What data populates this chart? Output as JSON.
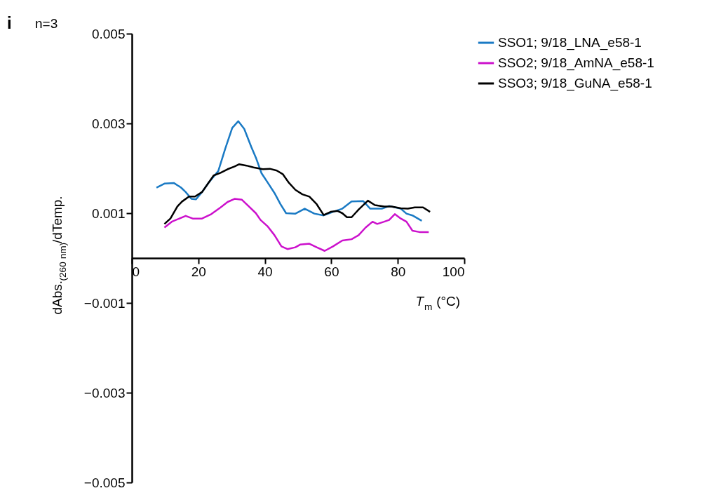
{
  "chart_data": {
    "type": "line",
    "xlabel": "T$_{m}$ (°C)",
    "ylabel": "dAbs.$_{(260 nm)}$/dTemp.",
    "annotations": [
      "i",
      "n=3"
    ],
    "xlim": [
      0,
      100
    ],
    "xticks": [
      0,
      20,
      40,
      60,
      80,
      100
    ],
    "ylim": [
      -0.005,
      0.005
    ],
    "yticks": [
      -0.005,
      -0.003,
      -0.001,
      0.001,
      0.003,
      0.005
    ],
    "grid": false,
    "legend": "right",
    "marker": "none",
    "line_style": "solid",
    "series": [
      {
        "name": "SSO1; 9/18_LNA_e58-1",
        "color": "#1a7ac4",
        "x": [
          7.4,
          9.8,
          12.7,
          14.8,
          16.2,
          17.9,
          19.3,
          21.1,
          23.2,
          26.0,
          28.1,
          30.2,
          32.0,
          33.8,
          35.9,
          37.3,
          39.0,
          40.8,
          42.9,
          44.7,
          46.4,
          49.2,
          52.0,
          54.9,
          57.7,
          60.5,
          63.3,
          66.1,
          69.6,
          71.7,
          75.2,
          77.4,
          80.9,
          82.6,
          84.4,
          87.2
        ],
        "values": [
          0.00157,
          0.00166,
          0.00167,
          0.00157,
          0.00147,
          0.00132,
          0.00131,
          0.00147,
          0.00169,
          0.00194,
          0.00244,
          0.0029,
          0.00305,
          0.00288,
          0.00248,
          0.00224,
          0.00189,
          0.00169,
          0.00145,
          0.0012,
          0.001,
          0.00099,
          0.0011,
          0.00099,
          0.00095,
          0.00103,
          0.0011,
          0.00126,
          0.00127,
          0.0011,
          0.0011,
          0.00116,
          0.0011,
          0.00099,
          0.00095,
          0.00083
        ]
      },
      {
        "name": "SSO2; 9/18_AmNA_e58-1",
        "color": "#cc11cc",
        "x": [
          9.8,
          12.0,
          16.2,
          18.3,
          21.1,
          23.9,
          26.7,
          28.8,
          30.9,
          33.1,
          35.2,
          37.3,
          38.7,
          40.8,
          42.9,
          45.0,
          46.8,
          49.2,
          50.6,
          53.4,
          55.6,
          58.0,
          60.5,
          63.3,
          66.1,
          68.2,
          70.3,
          72.4,
          73.8,
          75.9,
          77.4,
          79.1,
          80.9,
          82.6,
          84.4,
          86.5,
          89.3
        ],
        "values": [
          0.00068,
          0.00081,
          0.00094,
          0.00088,
          0.00088,
          0.00098,
          0.00113,
          0.00125,
          0.00132,
          0.0013,
          0.00115,
          0.001,
          0.00085,
          0.00071,
          0.00051,
          0.00026,
          0.0002,
          0.00024,
          0.0003,
          0.00032,
          0.00024,
          0.00016,
          0.00026,
          0.00039,
          0.00042,
          0.00051,
          0.00068,
          0.00081,
          0.00076,
          0.00081,
          0.00085,
          0.00098,
          0.00088,
          0.00081,
          0.00061,
          0.00058,
          0.00058
        ]
      },
      {
        "name": "SSO3; 9/18_GuNA_e58-1",
        "color": "#000000",
        "x": [
          9.8,
          11.6,
          13.7,
          15.1,
          17.2,
          19.0,
          21.1,
          23.2,
          24.6,
          26.7,
          28.8,
          30.9,
          32.3,
          34.5,
          36.6,
          39.4,
          41.5,
          43.6,
          45.4,
          47.1,
          49.2,
          51.3,
          53.4,
          55.6,
          57.7,
          59.8,
          61.9,
          63.3,
          64.7,
          66.1,
          68.2,
          71.0,
          73.1,
          75.9,
          78.1,
          80.9,
          83.0,
          85.1,
          87.6,
          89.7
        ],
        "values": [
          0.00076,
          0.00088,
          0.00115,
          0.00126,
          0.00137,
          0.00137,
          0.00147,
          0.00169,
          0.00184,
          0.0019,
          0.00198,
          0.00204,
          0.00209,
          0.00206,
          0.00202,
          0.00198,
          0.00199,
          0.00195,
          0.00187,
          0.00169,
          0.00152,
          0.00142,
          0.00137,
          0.0012,
          0.00096,
          0.00103,
          0.00105,
          0.001,
          0.00091,
          0.00091,
          0.00108,
          0.00128,
          0.00118,
          0.00115,
          0.00115,
          0.00111,
          0.0011,
          0.00113,
          0.00113,
          0.00103
        ]
      }
    ]
  }
}
